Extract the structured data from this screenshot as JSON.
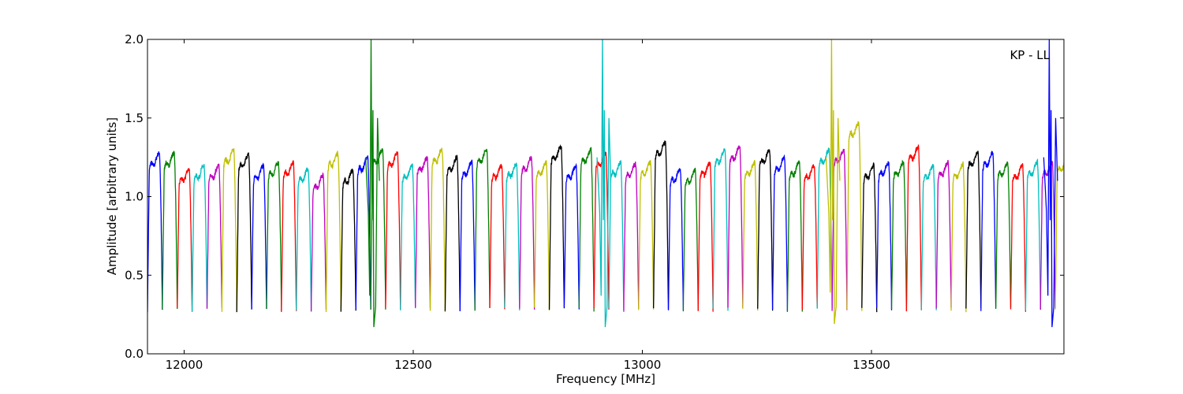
{
  "chart_data": {
    "type": "line",
    "xlabel": "Frequency [MHz]",
    "ylabel": "Amplitude [arbitrary units]",
    "annotation": "KP - LL",
    "xlim": [
      11920,
      13920
    ],
    "ylim": [
      0.0,
      2.0
    ],
    "xticks": [
      12000,
      12500,
      13000,
      13500
    ],
    "yticks": [
      0.0,
      0.5,
      1.0,
      1.5,
      2.0
    ],
    "ytick_labels": [
      "0.0",
      "0.5",
      "1.0",
      "1.5",
      "2.0"
    ],
    "grid": false,
    "legend": "none",
    "channel_start": 11920,
    "channel_width": 32.48,
    "channel_count": 62,
    "color_cycle": [
      "#0000ff",
      "#008000",
      "#ff0000",
      "#00bfbf",
      "#bf00bf",
      "#bfbf00",
      "#000000"
    ],
    "reference_color": "#b0b0b0",
    "channel_levels": [
      1.28,
      1.28,
      1.18,
      1.2,
      1.2,
      1.3,
      1.27,
      1.2,
      1.22,
      1.22,
      1.18,
      1.14,
      1.28,
      1.17,
      1.25,
      1.3,
      1.28,
      1.2,
      1.25,
      1.3,
      1.25,
      1.22,
      1.3,
      1.2,
      1.21,
      1.25,
      1.22,
      1.32,
      1.2,
      1.3,
      1.28,
      1.22,
      1.21,
      1.22,
      1.35,
      1.18,
      1.17,
      1.22,
      1.3,
      1.32,
      1.22,
      1.3,
      1.25,
      1.22,
      1.2,
      1.3,
      1.3,
      1.47,
      1.2,
      1.22,
      1.22,
      1.32,
      1.2,
      1.22,
      1.21,
      1.28,
      1.28,
      1.22,
      1.2,
      1.22,
      1.22,
      1.25
    ],
    "channel_minimum": 0.28,
    "spikes": [
      {
        "x": 12410,
        "peak": 2.0,
        "dip": 0.17,
        "color": "#008000"
      },
      {
        "x": 12915,
        "peak": 2.0,
        "dip": 0.17,
        "color": "#00bfbf"
      },
      {
        "x": 13415,
        "peak": 2.0,
        "dip": 0.19,
        "color": "#bfbf00"
      },
      {
        "x": 13890,
        "peak": 2.0,
        "dip": 0.17,
        "color": "#0000ff"
      }
    ]
  }
}
